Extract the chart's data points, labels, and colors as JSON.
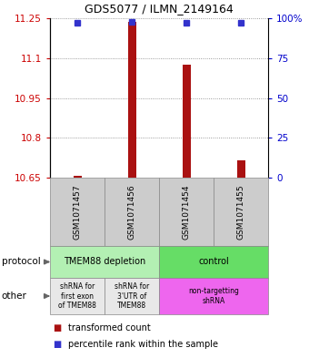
{
  "title": "GDS5077 / ILMN_2149164",
  "samples": [
    "GSM1071457",
    "GSM1071456",
    "GSM1071454",
    "GSM1071455"
  ],
  "transformed_counts": [
    10.656,
    11.238,
    11.075,
    10.715
  ],
  "percentile_ranks": [
    97,
    98,
    97,
    97
  ],
  "ylim": [
    10.65,
    11.25
  ],
  "yticks_left": [
    10.65,
    10.8,
    10.95,
    11.1,
    11.25
  ],
  "yticks_right": [
    0,
    25,
    50,
    75,
    100
  ],
  "bar_color": "#aa1111",
  "dot_color": "#3333cc",
  "protocol_labels": [
    "TMEM88 depletion",
    "control"
  ],
  "protocol_colors": [
    "#b3f0b3",
    "#66dd66"
  ],
  "other_labels_1": "shRNA for\nfirst exon\nof TMEM88",
  "other_labels_2": "shRNA for\n3'UTR of\nTMEM88",
  "other_labels_3": "non-targetting\nshRNA",
  "other_color_1": "#e8e8e8",
  "other_color_2": "#e8e8e8",
  "other_color_3": "#ee66ee",
  "sample_bg_color": "#cccccc",
  "legend_red_label": "transformed count",
  "legend_blue_label": "percentile rank within the sample",
  "bar_width": 0.15
}
